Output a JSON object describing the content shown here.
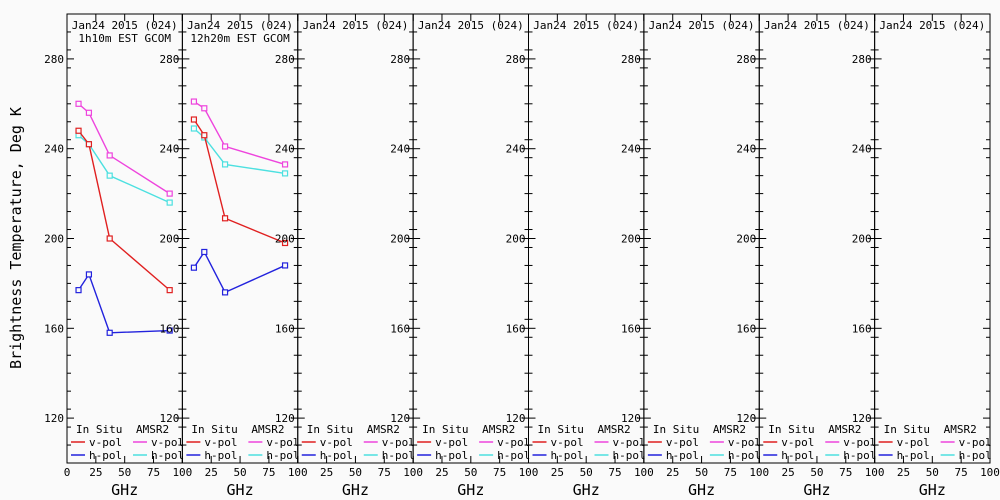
{
  "chart_data": {
    "type": "line",
    "ylabel": "Brightness Temperature, Deg K",
    "xlabel": "GHz",
    "x_ghz": [
      10,
      19,
      37,
      89
    ],
    "xlim": [
      0,
      100
    ],
    "ylim": [
      100,
      300
    ],
    "xticks": [
      0,
      25,
      50,
      75,
      100
    ],
    "yticks": [
      120,
      160,
      200,
      240,
      280
    ],
    "minor_ytick_step": 8,
    "grid": false,
    "legend": {
      "position": "bottom-inside-each-panel",
      "col1_header": "In Situ",
      "col2_header": "AMSR2",
      "row_labels": [
        "v-pol",
        "h-pol"
      ]
    },
    "colors": {
      "axis": "#000000",
      "background": "#fafafa",
      "insitu_v": "#e02020",
      "insitu_h": "#2222dd",
      "amsr2_v": "#ee44dd",
      "amsr2_h": "#4ce0e0"
    },
    "panels": [
      {
        "title": "Jan24 2015 (024)",
        "subtitle": "1h10m EST GCOM",
        "series": [
          {
            "name": "amsr2-v-pol",
            "color": "amsr2_v",
            "values": [
              260,
              256,
              237,
              220
            ]
          },
          {
            "name": "amsr2-h-pol",
            "color": "amsr2_h",
            "values": [
              246,
              242,
              228,
              216
            ]
          },
          {
            "name": "insitu-h-pol",
            "color": "insitu_h",
            "values": [
              177,
              184,
              158,
              159
            ]
          },
          {
            "name": "insitu-v-pol",
            "color": "insitu_v",
            "values": [
              248,
              242,
              200,
              177
            ]
          }
        ]
      },
      {
        "title": "Jan24 2015 (024)",
        "subtitle": "12h20m EST GCOM",
        "series": [
          {
            "name": "amsr2-v-pol",
            "color": "amsr2_v",
            "values": [
              261,
              258,
              241,
              233
            ]
          },
          {
            "name": "amsr2-h-pol",
            "color": "amsr2_h",
            "values": [
              249,
              245,
              233,
              229
            ]
          },
          {
            "name": "insitu-h-pol",
            "color": "insitu_h",
            "values": [
              187,
              194,
              176,
              188
            ]
          },
          {
            "name": "insitu-v-pol",
            "color": "insitu_v",
            "values": [
              253,
              246,
              209,
              198
            ]
          }
        ]
      },
      {
        "title": "Jan24 2015 (024)",
        "subtitle": "",
        "series": []
      },
      {
        "title": "Jan24 2015 (024)",
        "subtitle": "",
        "series": []
      },
      {
        "title": "Jan24 2015 (024)",
        "subtitle": "",
        "series": []
      },
      {
        "title": "Jan24 2015 (024)",
        "subtitle": "",
        "series": []
      },
      {
        "title": "Jan24 2015 (024)",
        "subtitle": "",
        "series": []
      },
      {
        "title": "Jan24 2015 (024)",
        "subtitle": "",
        "series": []
      }
    ]
  }
}
